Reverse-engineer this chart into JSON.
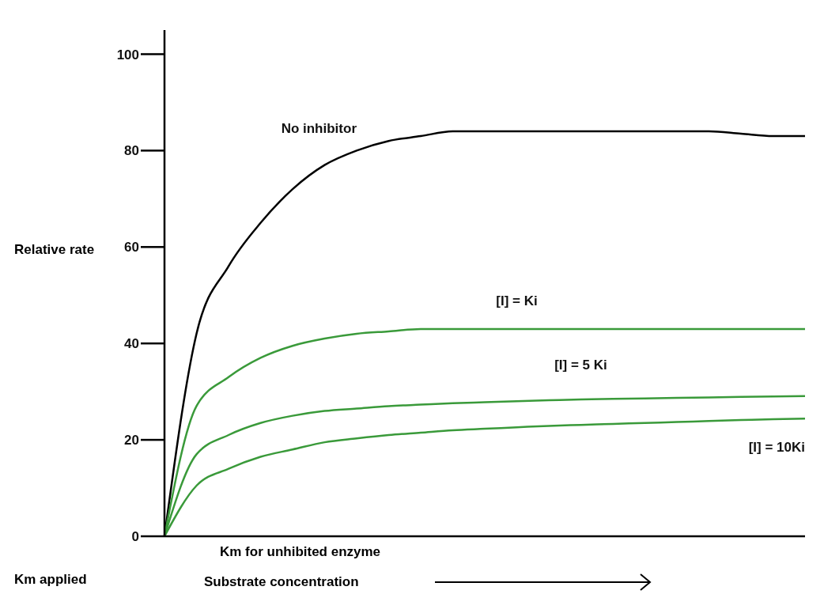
{
  "chart_data": {
    "type": "line",
    "ylabel": "Relative rate",
    "xlabel": "Substrate concentration",
    "categories": [
      null,
      null,
      null,
      null,
      null,
      null,
      null,
      null,
      null,
      null,
      null,
      null,
      null,
      null,
      null,
      null,
      null,
      null,
      null,
      null,
      null
    ],
    "ylim": [
      0,
      105
    ],
    "yticks": [
      0,
      20,
      40,
      60,
      80,
      100
    ],
    "grid": false,
    "legend": false,
    "marker": "none",
    "line_style": "solid",
    "series": [
      {
        "name": "No inhibitor",
        "color": "#000000",
        "values": [
          0,
          42,
          56,
          65,
          72,
          77,
          80,
          82,
          83,
          84,
          84,
          84,
          84,
          84,
          84,
          84,
          84,
          84,
          83.5,
          83,
          83
        ]
      },
      {
        "name": "[I] = Ki",
        "color": "#3a9a3a",
        "values": [
          0,
          27,
          33,
          37,
          39.5,
          41,
          42,
          42.5,
          43,
          43,
          43,
          43,
          43,
          43,
          43,
          43,
          43,
          43,
          43,
          43,
          43
        ]
      },
      {
        "name": "[I] = 5 Ki",
        "color": "#3a9a3a",
        "values": [
          0,
          17,
          21,
          23.5,
          25,
          26,
          26.5,
          27,
          27.3,
          27.6,
          27.8,
          28,
          28.2,
          28.4,
          28.5,
          28.6,
          28.7,
          28.8,
          28.9,
          29,
          29.1
        ]
      },
      {
        "name": "[I] = 10Ki",
        "color": "#3a9a3a",
        "values": [
          0,
          10.5,
          14,
          16.5,
          18,
          19.5,
          20.3,
          21,
          21.5,
          22,
          22.3,
          22.6,
          22.9,
          23.1,
          23.3,
          23.5,
          23.7,
          23.9,
          24.1,
          24.3,
          24.4
        ]
      }
    ],
    "annotations": [
      "Km for unhibited enzyme",
      "Km applied"
    ]
  }
}
